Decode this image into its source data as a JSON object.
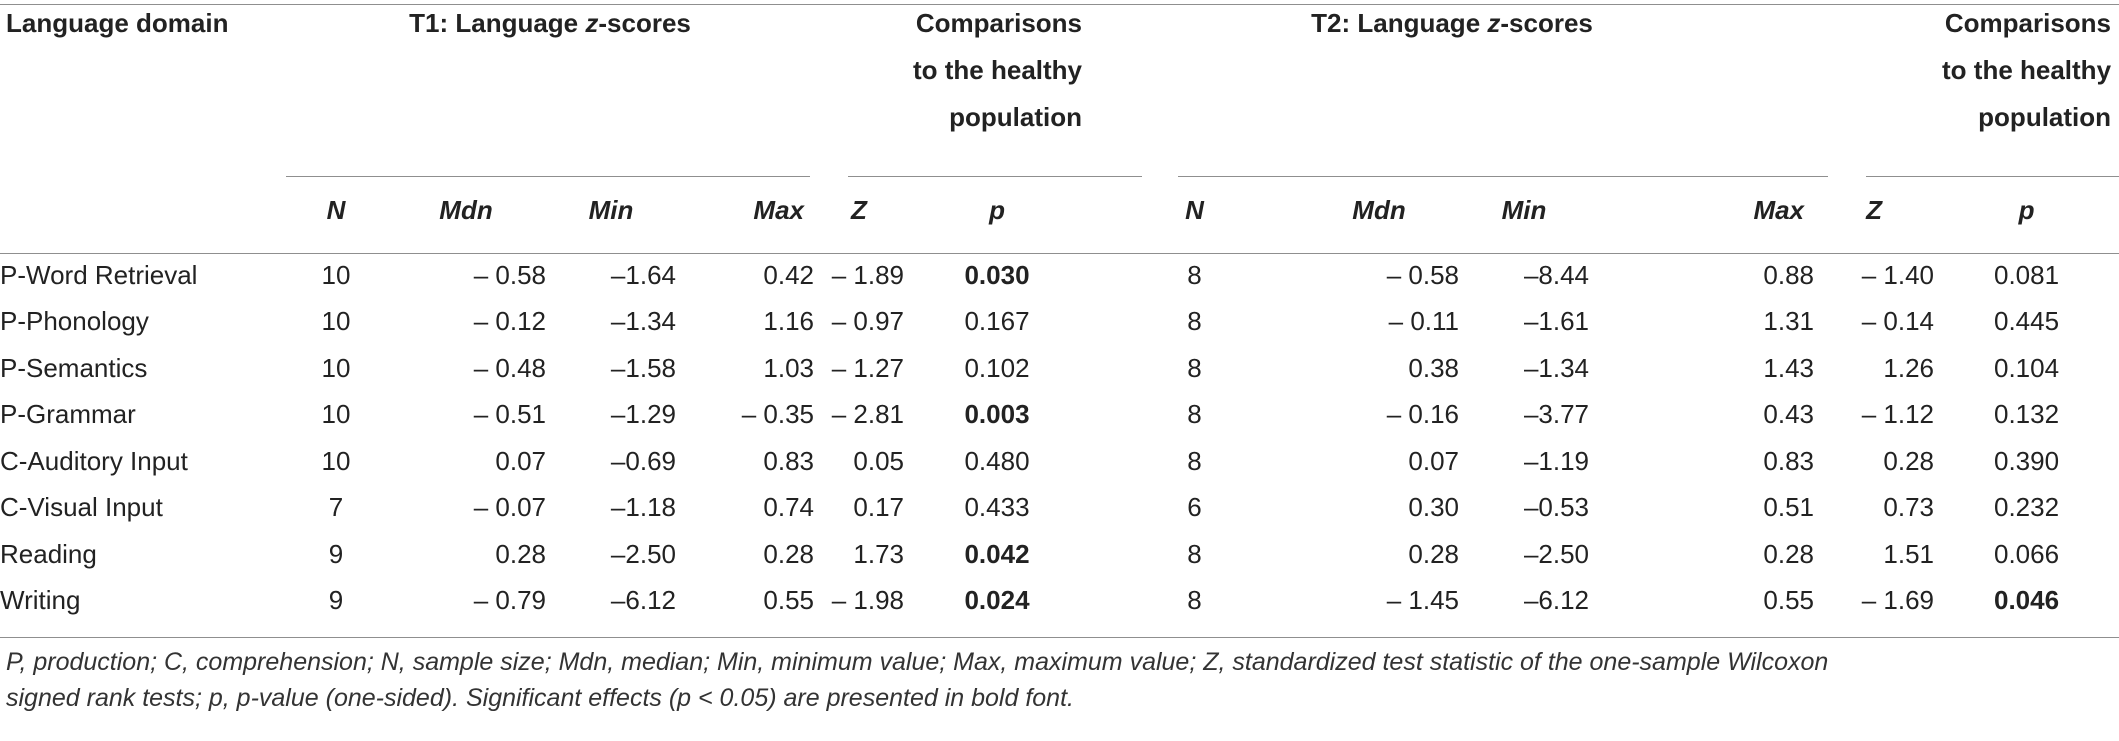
{
  "header": {
    "language_domain": "Language domain",
    "t1_title_prefix": "T1: Language ",
    "t1_title_z": "z",
    "t1_title_suffix": "-scores",
    "t2_title_prefix": "T2: Language ",
    "t2_title_z": "z",
    "t2_title_suffix": "-scores",
    "comparison_line1": "Comparisons",
    "comparison_line2": "to the healthy",
    "comparison_line3": "population",
    "cols": {
      "n": "N",
      "mdn": "Mdn",
      "min": "Min",
      "max": "Max",
      "z": "Z",
      "p": "p"
    }
  },
  "rows": [
    {
      "domain": "P-Word Retrieval",
      "t1": {
        "n": "10",
        "mdn": "– 0.58",
        "min": "–1.64",
        "max": "0.42",
        "z": "– 1.89",
        "p": "0.030",
        "p_bold": true
      },
      "t2": {
        "n": "8",
        "mdn": "– 0.58",
        "min": "–8.44",
        "max": "0.88",
        "z": "– 1.40",
        "p": "0.081",
        "p_bold": false
      }
    },
    {
      "domain": "P-Phonology",
      "t1": {
        "n": "10",
        "mdn": "– 0.12",
        "min": "–1.34",
        "max": "1.16",
        "z": "– 0.97",
        "p": "0.167",
        "p_bold": false
      },
      "t2": {
        "n": "8",
        "mdn": "– 0.11",
        "min": "–1.61",
        "max": "1.31",
        "z": "– 0.14",
        "p": "0.445",
        "p_bold": false
      }
    },
    {
      "domain": "P-Semantics",
      "t1": {
        "n": "10",
        "mdn": "– 0.48",
        "min": "–1.58",
        "max": "1.03",
        "z": "– 1.27",
        "p": "0.102",
        "p_bold": false
      },
      "t2": {
        "n": "8",
        "mdn": "0.38",
        "min": "–1.34",
        "max": "1.43",
        "z": "1.26",
        "p": "0.104",
        "p_bold": false
      }
    },
    {
      "domain": "P-Grammar",
      "t1": {
        "n": "10",
        "mdn": "– 0.51",
        "min": "–1.29",
        "max": "– 0.35",
        "z": "– 2.81",
        "p": "0.003",
        "p_bold": true
      },
      "t2": {
        "n": "8",
        "mdn": "– 0.16",
        "min": "–3.77",
        "max": "0.43",
        "z": "– 1.12",
        "p": "0.132",
        "p_bold": false
      }
    },
    {
      "domain": "C-Auditory Input",
      "t1": {
        "n": "10",
        "mdn": "0.07",
        "min": "–0.69",
        "max": "0.83",
        "z": "0.05",
        "p": "0.480",
        "p_bold": false
      },
      "t2": {
        "n": "8",
        "mdn": "0.07",
        "min": "–1.19",
        "max": "0.83",
        "z": "0.28",
        "p": "0.390",
        "p_bold": false
      }
    },
    {
      "domain": "C-Visual Input",
      "t1": {
        "n": "7",
        "mdn": "– 0.07",
        "min": "–1.18",
        "max": "0.74",
        "z": "0.17",
        "p": "0.433",
        "p_bold": false
      },
      "t2": {
        "n": "6",
        "mdn": "0.30",
        "min": "–0.53",
        "max": "0.51",
        "z": "0.73",
        "p": "0.232",
        "p_bold": false
      }
    },
    {
      "domain": "Reading",
      "t1": {
        "n": "9",
        "mdn": "0.28",
        "min": "–2.50",
        "max": "0.28",
        "z": "1.73",
        "p": "0.042",
        "p_bold": true
      },
      "t2": {
        "n": "8",
        "mdn": "0.28",
        "min": "–2.50",
        "max": "0.28",
        "z": "1.51",
        "p": "0.066",
        "p_bold": false
      }
    },
    {
      "domain": "Writing",
      "t1": {
        "n": "9",
        "mdn": "– 0.79",
        "min": "–6.12",
        "max": "0.55",
        "z": "– 1.98",
        "p": "0.024",
        "p_bold": true
      },
      "t2": {
        "n": "8",
        "mdn": "– 1.45",
        "min": "–6.12",
        "max": "0.55",
        "z": "– 1.69",
        "p": "0.046",
        "p_bold": true
      }
    }
  ],
  "footnote": {
    "line1": "P, production; C, comprehension; N, sample size; Mdn, median; Min, minimum value; Max, maximum value; Z, standardized test statistic of the one-sample Wilcoxon",
    "line2": "signed rank tests; p, p-value (one-sided). Significant effects (p < 0.05) are presented in bold font."
  }
}
